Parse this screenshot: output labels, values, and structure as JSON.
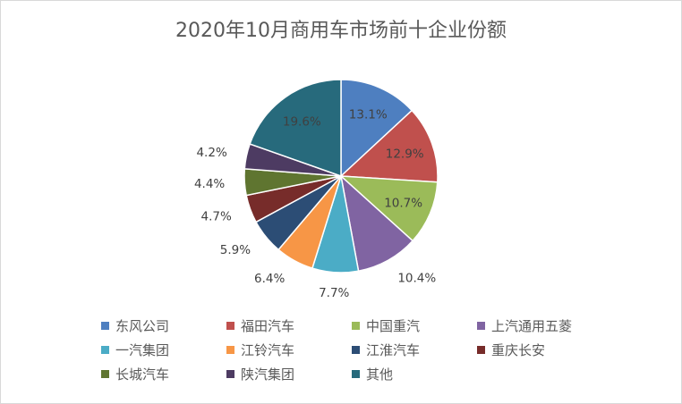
{
  "chart_data": {
    "type": "pie",
    "title": "2020年10月商用车市场前十企业份额",
    "categories": [
      "东风公司",
      "福田汽车",
      "中国重汽",
      "上汽通用五菱",
      "一汽集团",
      "江铃汽车",
      "江淮汽车",
      "重庆长安",
      "长城汽车",
      "陕汽集团",
      "其他"
    ],
    "values": [
      13.1,
      12.9,
      10.7,
      10.4,
      7.7,
      6.4,
      5.9,
      4.7,
      4.4,
      4.2,
      19.6
    ],
    "labels": [
      "13.1%",
      "12.9%",
      "10.7%",
      "10.4%",
      "7.7%",
      "6.4%",
      "5.9%",
      "4.7%",
      "4.4%",
      "4.2%",
      "19.6%"
    ],
    "colors": [
      "#4e7fc0",
      "#c0504d",
      "#9bbb59",
      "#8064a2",
      "#4bacc6",
      "#f79646",
      "#2c4d75",
      "#772c2a",
      "#5f7530",
      "#4d3b62",
      "#276a7c"
    ],
    "legend_position": "bottom"
  }
}
